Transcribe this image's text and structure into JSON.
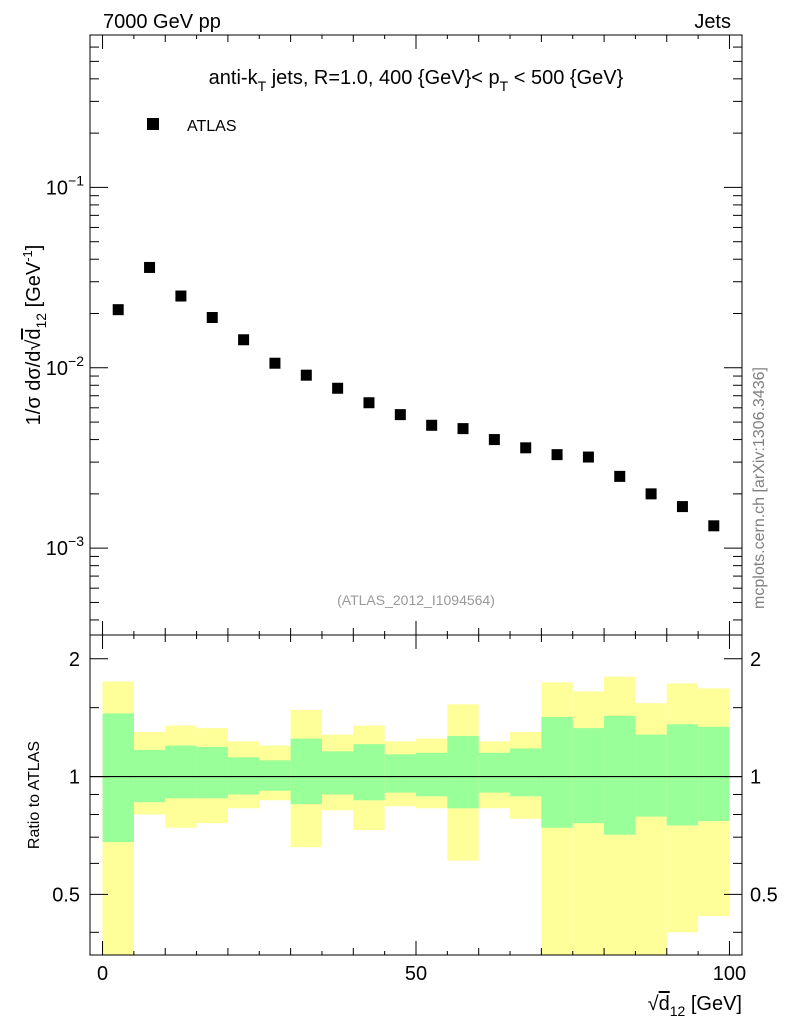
{
  "header": {
    "left": "7000 GeV pp",
    "right": "Jets"
  },
  "watermark": "mcplots.cern.ch [arXiv:1306.3436]",
  "analysis_id": "(ATLAS_2012_I1094564)",
  "colors": {
    "data_marker": "#000000",
    "band_inner": "#99ff99",
    "band_outer": "#ffff99",
    "analysis_text": "#999999",
    "watermark_text": "#808080"
  },
  "chart_data": [
    {
      "type": "scatter",
      "title": "anti-kT jets, R=1.0, 400 {GeV}< pT < 500 {GeV}",
      "title_parts": {
        "prefix": "anti-k",
        "sub1": "T",
        "middle": " jets, R=1.0, 400 {GeV}< p",
        "sub2": "T",
        "suffix": " < 500 {GeV}"
      },
      "ylabel": "1/σ dσ/d√d12 [GeV-1]",
      "ylabel_parts": {
        "main": "1/σ dσ/d",
        "d": "d",
        "sub": "12",
        "unit": " [GeV",
        "sup": "-1",
        "close": "]"
      },
      "yscale": "log",
      "ylim": [
        0.00033,
        0.7
      ],
      "xlim": [
        -2,
        102
      ],
      "y_ticks": [
        {
          "value": 0.1,
          "base": "10",
          "exp": "−1"
        },
        {
          "value": 0.01,
          "base": "10",
          "exp": "−2"
        },
        {
          "value": 0.001,
          "base": "10",
          "exp": "−3"
        }
      ],
      "legend": {
        "label": "ATLAS",
        "position": "top-left"
      },
      "series": [
        {
          "name": "ATLAS",
          "x": [
            2.5,
            7.5,
            12.5,
            17.5,
            22.5,
            27.5,
            32.5,
            37.5,
            42.5,
            47.5,
            52.5,
            57.5,
            62.5,
            67.5,
            72.5,
            77.5,
            82.5,
            87.5,
            92.5,
            97.5
          ],
          "y": [
            0.021,
            0.036,
            0.025,
            0.019,
            0.0143,
            0.0106,
            0.0091,
            0.0077,
            0.0064,
            0.0055,
            0.0048,
            0.0046,
            0.004,
            0.0036,
            0.0033,
            0.0032,
            0.0025,
            0.002,
            0.0017,
            0.00133
          ]
        }
      ]
    },
    {
      "type": "area",
      "ylabel": "Ratio to ATLAS",
      "xlabel": "√d12 [GeV]",
      "xlabel_parts": {
        "d": "d",
        "sub": "12",
        "unit": " [GeV]"
      },
      "xlim": [
        -2,
        102
      ],
      "ylim": [
        0.35,
        2.3
      ],
      "x_tick_labels": [
        "0",
        "50",
        "100"
      ],
      "x_tick_values": [
        0,
        50,
        100
      ],
      "y_tick_labels": [
        "0.5",
        "1",
        "2"
      ],
      "y_tick_values": [
        0.5,
        1,
        2
      ],
      "reference_line": 1,
      "bins": [
        0,
        5,
        10,
        15,
        20,
        25,
        30,
        35,
        40,
        45,
        50,
        55,
        60,
        65,
        70,
        75,
        80,
        85,
        90,
        95,
        100
      ],
      "inner_band": {
        "upper": [
          1.45,
          1.17,
          1.2,
          1.19,
          1.12,
          1.1,
          1.25,
          1.16,
          1.21,
          1.14,
          1.15,
          1.27,
          1.15,
          1.18,
          1.42,
          1.33,
          1.43,
          1.28,
          1.36,
          1.34
        ],
        "lower": [
          0.68,
          0.86,
          0.88,
          0.88,
          0.9,
          0.92,
          0.85,
          0.9,
          0.87,
          0.91,
          0.89,
          0.83,
          0.91,
          0.89,
          0.74,
          0.76,
          0.71,
          0.79,
          0.75,
          0.77
        ]
      },
      "outer_band": {
        "upper": [
          1.75,
          1.3,
          1.35,
          1.33,
          1.23,
          1.2,
          1.48,
          1.28,
          1.35,
          1.23,
          1.25,
          1.53,
          1.23,
          1.3,
          1.74,
          1.65,
          1.8,
          1.54,
          1.73,
          1.68
        ],
        "lower": [
          0.35,
          0.8,
          0.74,
          0.76,
          0.83,
          0.87,
          0.66,
          0.82,
          0.73,
          0.84,
          0.83,
          0.61,
          0.83,
          0.78,
          0.35,
          0.35,
          0.35,
          0.35,
          0.4,
          0.44
        ]
      }
    }
  ]
}
